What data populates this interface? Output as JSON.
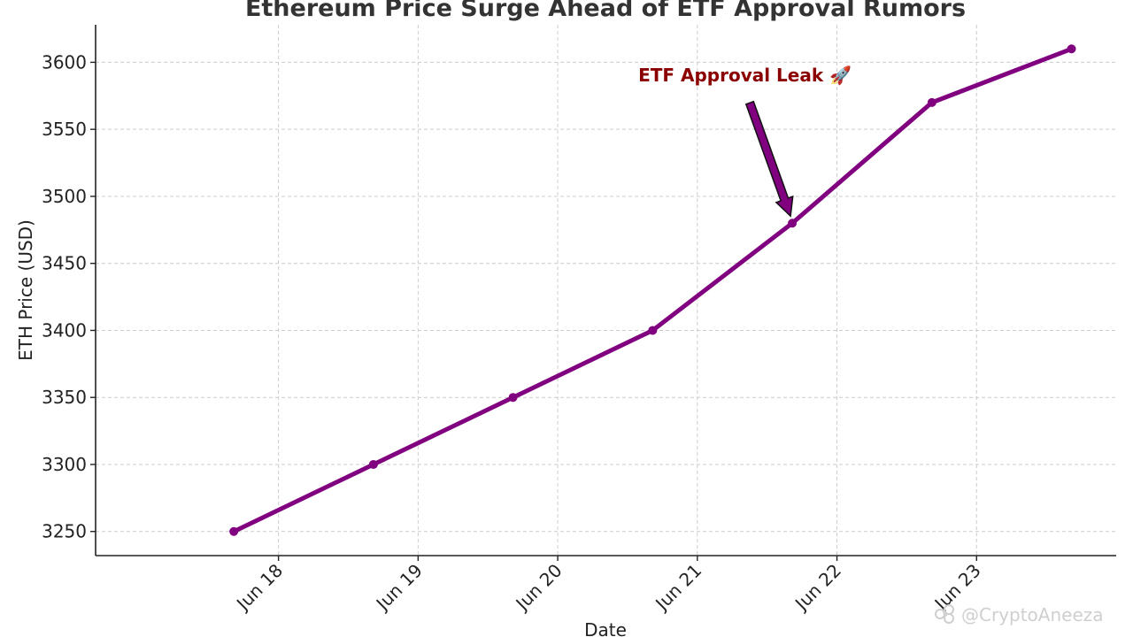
{
  "chart_data": {
    "type": "line",
    "title": "Ethereum Price Surge Ahead of ETF Approval Rumors",
    "xlabel": "Date",
    "ylabel": "ETH Price (USD)",
    "x": [
      0.68,
      1.68,
      2.68,
      3.68,
      4.68,
      5.68,
      6.68
    ],
    "x_unit": "days since Jun 17",
    "xlim": [
      -0.31,
      7.0
    ],
    "x_ticks": [
      {
        "value": 1,
        "label": "Jun 18"
      },
      {
        "value": 2,
        "label": "Jun 19"
      },
      {
        "value": 3,
        "label": "Jun 20"
      },
      {
        "value": 4,
        "label": "Jun 21"
      },
      {
        "value": 5,
        "label": "Jun 22"
      },
      {
        "value": 6,
        "label": "Jun 23"
      }
    ],
    "series": [
      {
        "name": "ETH Price",
        "values": [
          3250,
          3300,
          3350,
          3400,
          3480,
          3570,
          3610
        ],
        "color": "#800080"
      }
    ],
    "ylim": [
      3232,
      3628
    ],
    "y_ticks": [
      3250,
      3300,
      3350,
      3400,
      3450,
      3500,
      3550,
      3600
    ],
    "grid": true,
    "annotations": [
      {
        "text": "ETF Approval Leak 🚀",
        "point_index": 4,
        "color": "#8b0000",
        "arrow_color": "#800080"
      }
    ]
  },
  "watermark": {
    "text": "@CryptoAneeza"
  }
}
